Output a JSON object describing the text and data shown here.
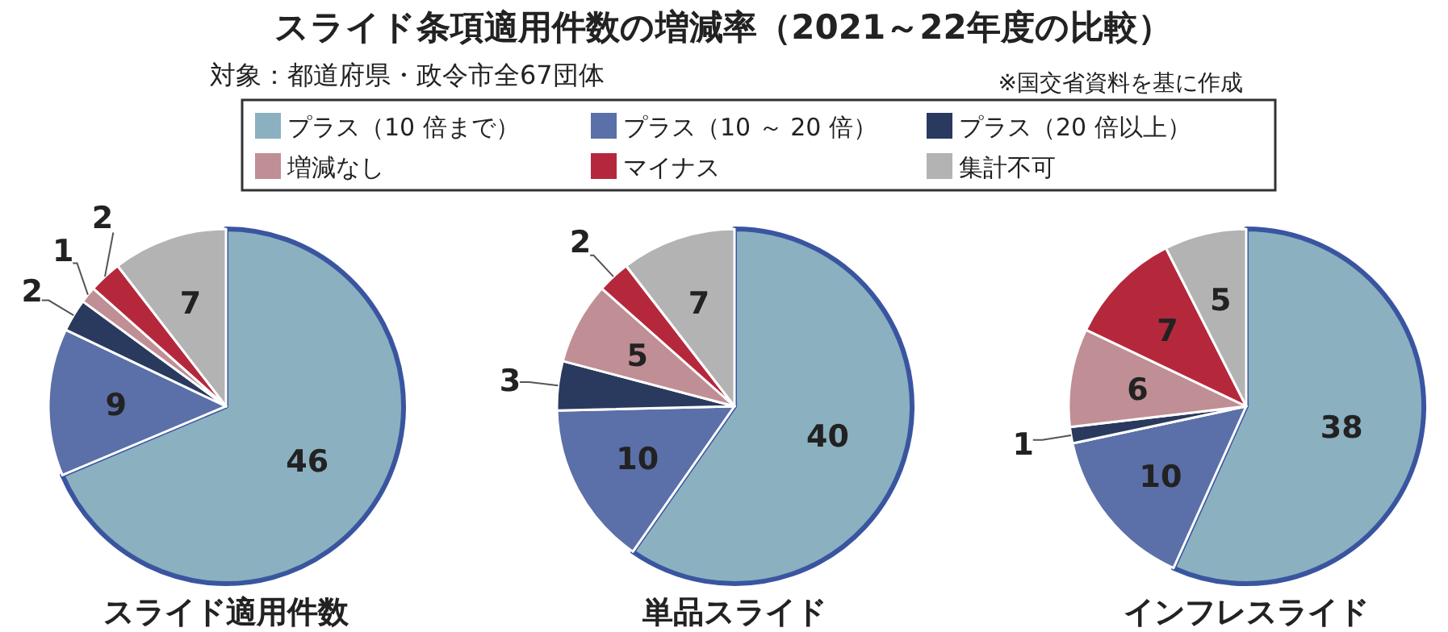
{
  "chart_data": [
    {
      "type": "pie",
      "title": "スライド適用件数",
      "annotations": [
        "スライド条項適用件数の増減率（2021～22年度の比較）",
        "対象：都道府県・政令市全67団体",
        "※国交省資料を基に作成"
      ],
      "legend": "top",
      "categories": [
        "プラス（10 倍まで）",
        "プラス（10 ～ 20 倍）",
        "プラス（20 倍以上）",
        "増減なし",
        "マイナス",
        "集計不可"
      ],
      "values": [
        46,
        9,
        2,
        1,
        2,
        7
      ],
      "colors": [
        "#8bb0c0",
        "#5b6fa8",
        "#2a3a5e",
        "#c08e95",
        "#b5283c",
        "#b3b3b3"
      ],
      "data_labels": true
    },
    {
      "type": "pie",
      "title": "単品スライド",
      "values": [
        40,
        10,
        3,
        5,
        2,
        7
      ],
      "colors": [
        "#8bb0c0",
        "#5b6fa8",
        "#2a3a5e",
        "#c08e95",
        "#b5283c",
        "#b3b3b3"
      ],
      "data_labels": true
    },
    {
      "type": "pie",
      "title": "インフレスライド",
      "values": [
        38,
        10,
        1,
        6,
        7,
        5
      ],
      "colors": [
        "#8bb0c0",
        "#5b6fa8",
        "#2a3a5e",
        "#c08e95",
        "#b5283c",
        "#b3b3b3"
      ],
      "data_labels": true
    }
  ]
}
